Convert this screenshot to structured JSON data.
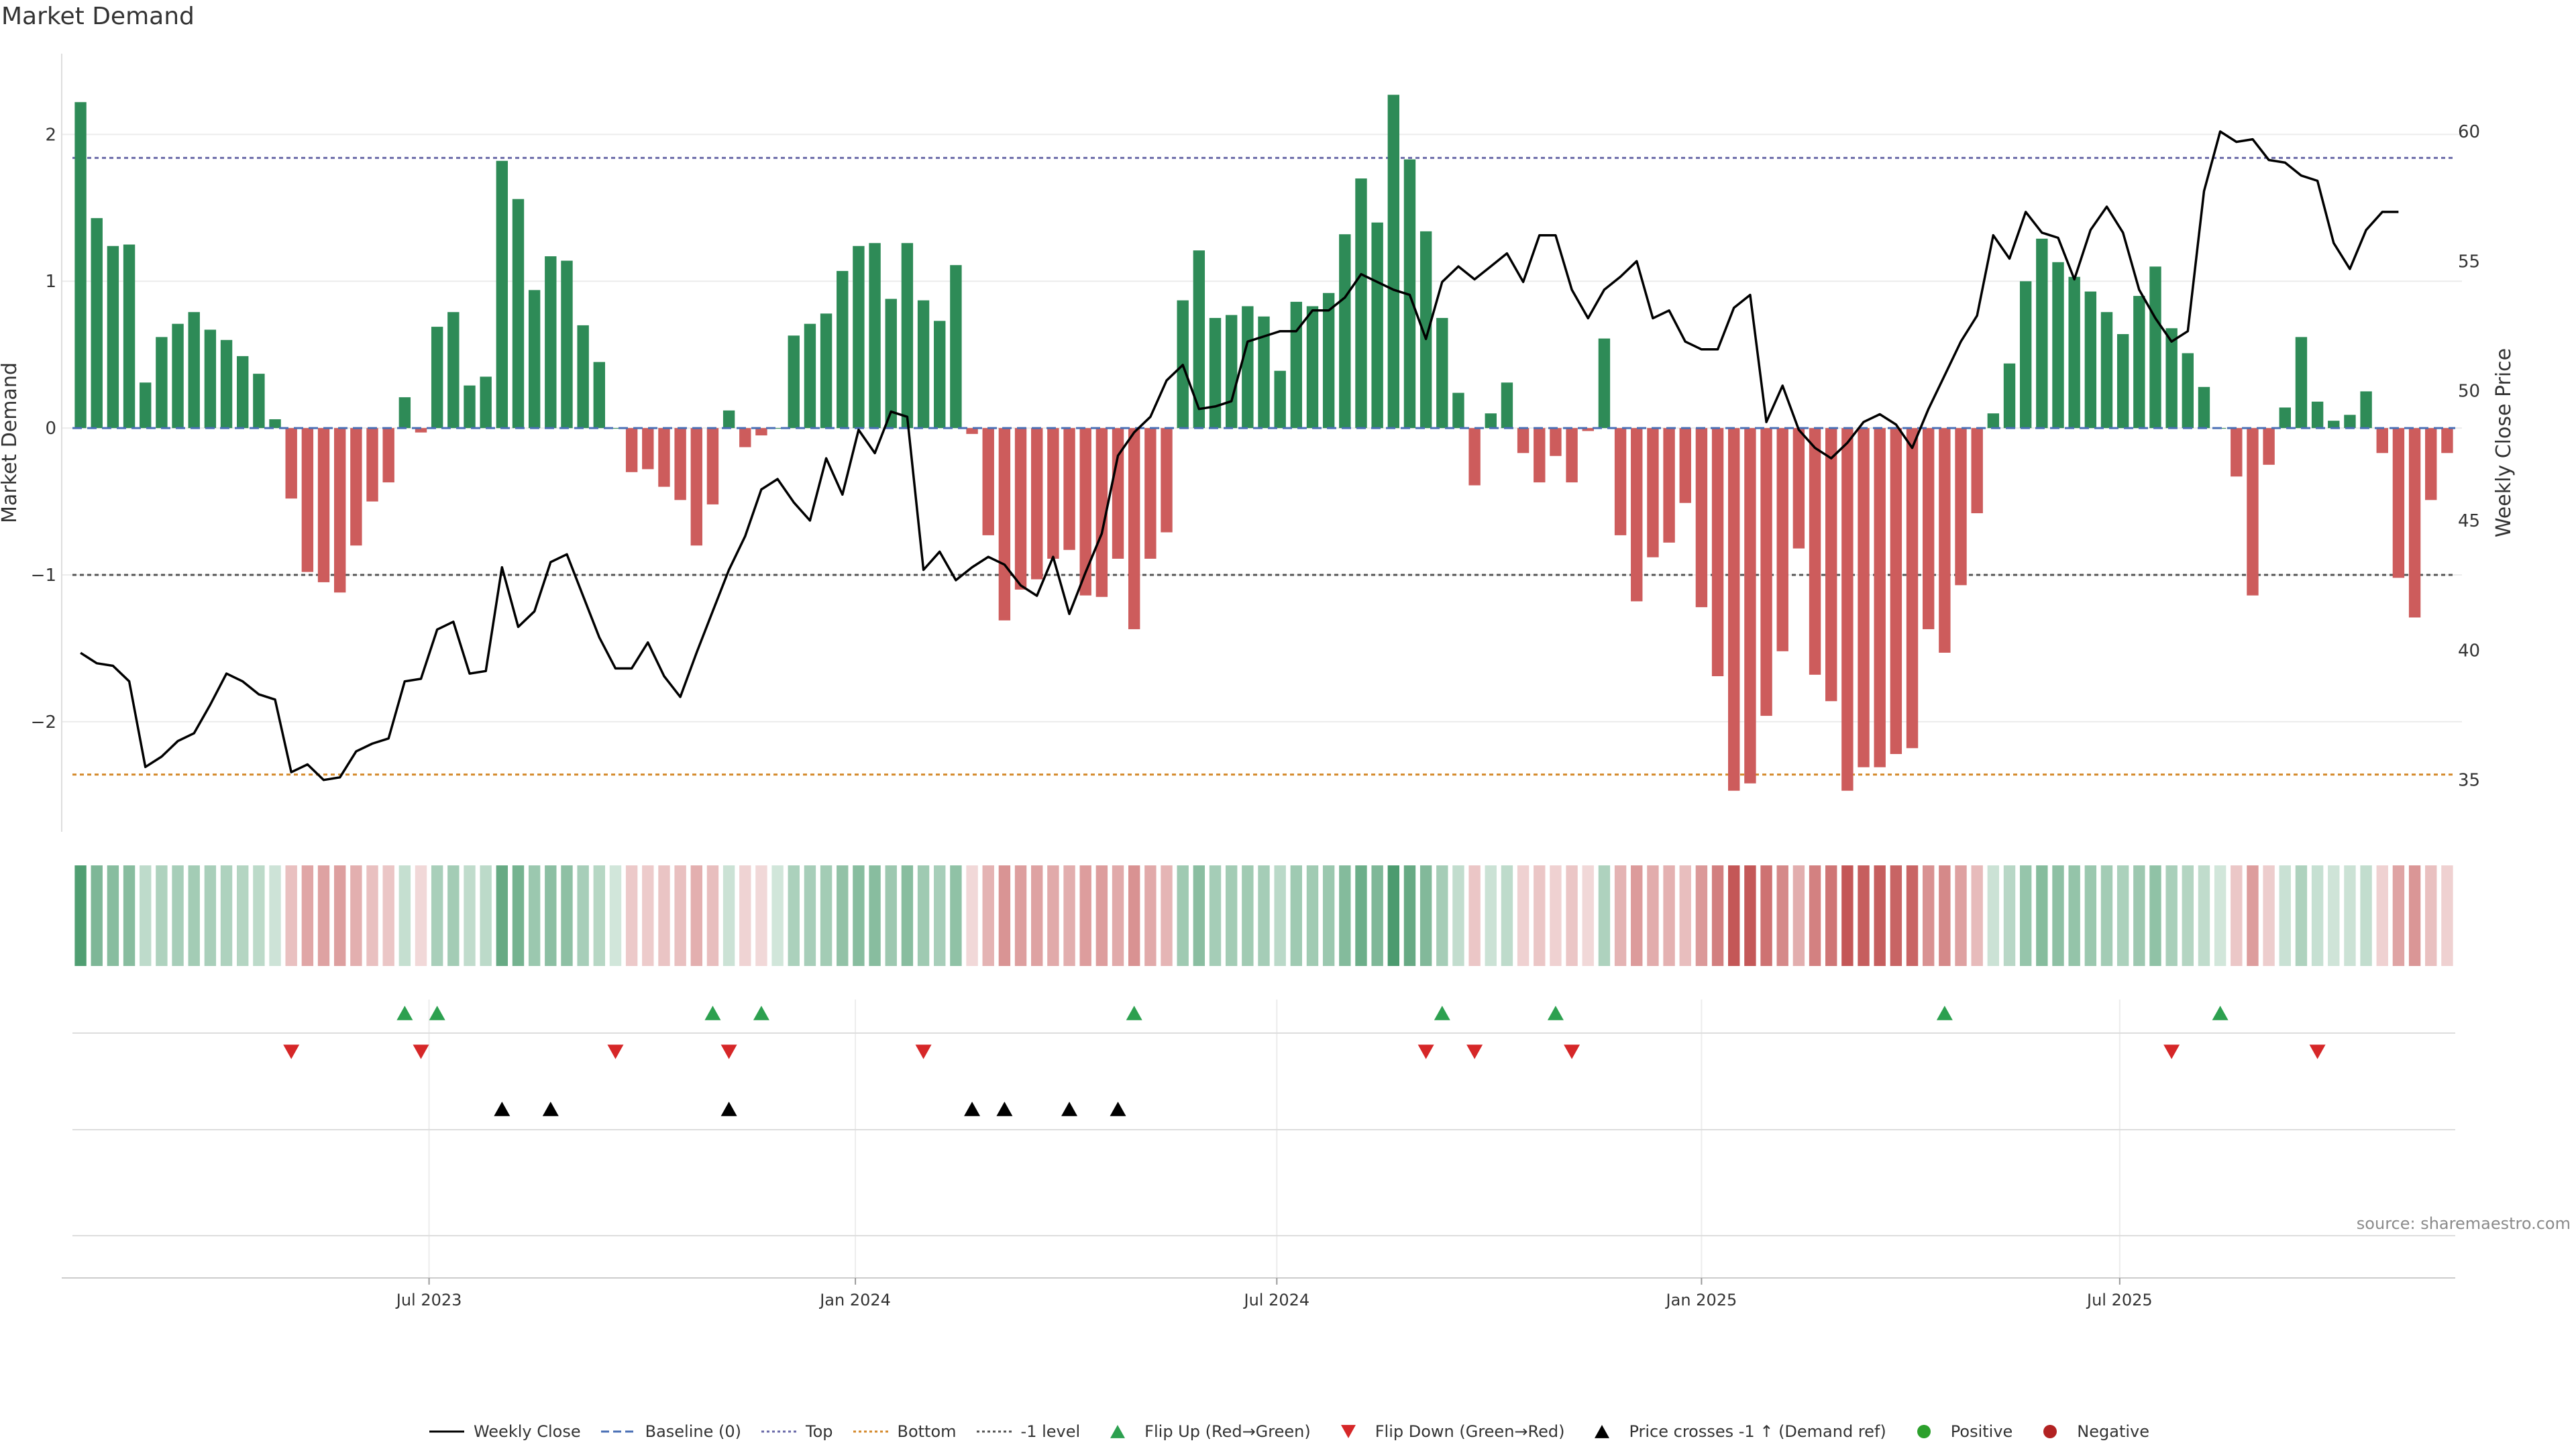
{
  "chart_data": {
    "type": "bar",
    "title": "Market Demand",
    "ylabel": "Market Demand",
    "y2label": "Weekly Close Price",
    "ylim": [
      -2.75,
      2.55
    ],
    "y2lim": [
      33.0,
      63.0
    ],
    "yticks": [
      {
        "v": 2,
        "label": "2"
      },
      {
        "v": 1,
        "label": "1"
      },
      {
        "v": 0,
        "label": "0"
      },
      {
        "v": -1,
        "label": "−1"
      },
      {
        "v": -2,
        "label": "−2"
      }
    ],
    "y2ticks": [
      {
        "v": 60,
        "label": "60"
      },
      {
        "v": 55,
        "label": "55"
      },
      {
        "v": 50,
        "label": "50"
      },
      {
        "v": 45,
        "label": "45"
      },
      {
        "v": 40,
        "label": "40"
      },
      {
        "v": 35,
        "label": "35"
      }
    ],
    "reference_lines": {
      "top": 1.84,
      "bottom": -2.36,
      "minus_one": -1.0,
      "baseline": 0
    },
    "x_start_week": 0,
    "x_ticks": [
      {
        "week": 21.5,
        "label": "Jul 2023"
      },
      {
        "week": 47.8,
        "label": "Jan 2024"
      },
      {
        "week": 73.8,
        "label": "Jul 2024"
      },
      {
        "week": 100.0,
        "label": "Jan 2025"
      },
      {
        "week": 125.8,
        "label": "Jul 2025"
      }
    ],
    "demand": [
      2.22,
      1.43,
      1.24,
      1.25,
      0.31,
      0.62,
      0.71,
      0.79,
      0.67,
      0.6,
      0.49,
      0.37,
      0.06,
      -0.48,
      -0.98,
      -1.05,
      -1.12,
      -0.8,
      -0.5,
      -0.37,
      0.21,
      -0.03,
      0.69,
      0.79,
      0.29,
      0.35,
      1.82,
      1.56,
      0.94,
      1.17,
      1.14,
      0.7,
      0.45,
      0.0,
      -0.3,
      -0.28,
      -0.4,
      -0.49,
      -0.8,
      -0.52,
      0.12,
      -0.13,
      -0.05,
      0.0,
      0.63,
      0.71,
      0.78,
      1.07,
      1.24,
      1.26,
      0.88,
      1.26,
      0.87,
      0.73,
      1.11,
      -0.04,
      -0.73,
      -1.31,
      -1.1,
      -1.03,
      -0.89,
      -0.83,
      -1.14,
      -1.15,
      -0.89,
      -1.37,
      -0.89,
      -0.71,
      0.87,
      1.21,
      0.75,
      0.77,
      0.83,
      0.76,
      0.39,
      0.86,
      0.83,
      0.92,
      1.32,
      1.7,
      1.4,
      2.27,
      1.83,
      1.34,
      0.75,
      0.24,
      -0.39,
      0.1,
      0.31,
      -0.17,
      -0.37,
      -0.19,
      -0.37,
      -0.02,
      0.61,
      -0.73,
      -1.18,
      -0.88,
      -0.78,
      -0.51,
      -1.22,
      -1.69,
      -2.47,
      -2.42,
      -1.96,
      -1.52,
      -0.82,
      -1.68,
      -1.86,
      -2.47,
      -2.31,
      -2.31,
      -2.22,
      -2.18,
      -1.37,
      -1.53,
      -1.07,
      -0.58,
      0.1,
      0.44,
      1.0,
      1.29,
      1.13,
      1.03,
      0.93,
      0.79,
      0.64,
      0.9,
      1.1,
      0.68,
      0.51,
      0.28,
      0.0,
      -0.33,
      -1.14,
      -0.25,
      0.14,
      0.62,
      0.18,
      0.05,
      0.09,
      0.25,
      -0.17,
      -1.02,
      -1.29,
      -0.49,
      -0.17
    ],
    "close": [
      39.9,
      39.5,
      39.4,
      38.8,
      35.5,
      35.9,
      36.5,
      36.8,
      37.9,
      39.1,
      38.8,
      38.3,
      38.1,
      35.3,
      35.6,
      35.0,
      35.1,
      36.1,
      36.4,
      36.6,
      38.8,
      38.9,
      40.8,
      41.1,
      39.1,
      39.2,
      43.2,
      40.9,
      41.5,
      43.4,
      43.7,
      42.1,
      40.5,
      39.3,
      39.3,
      40.3,
      39.0,
      38.2,
      39.9,
      41.5,
      43.1,
      44.4,
      46.2,
      46.6,
      45.7,
      45.0,
      47.4,
      46.0,
      48.5,
      47.6,
      49.2,
      49.0,
      43.1,
      43.8,
      42.7,
      43.2,
      43.6,
      43.3,
      42.5,
      42.1,
      43.6,
      41.4,
      43.0,
      44.5,
      47.5,
      48.4,
      49.0,
      50.4,
      51.0,
      49.3,
      49.4,
      49.6,
      51.9,
      52.1,
      52.3,
      52.3,
      53.1,
      53.1,
      53.6,
      54.5,
      54.2,
      53.9,
      53.7,
      52.0,
      54.2,
      54.8,
      54.3,
      54.8,
      55.3,
      54.2,
      56.0,
      56.0,
      53.9,
      52.8,
      53.9,
      54.4,
      55.0,
      52.8,
      53.1,
      51.9,
      51.6,
      51.6,
      53.2,
      53.7,
      48.8,
      50.2,
      48.5,
      47.8,
      47.4,
      48.0,
      48.8,
      49.1,
      48.7,
      47.8,
      49.3,
      50.6,
      51.9,
      52.9,
      56.0,
      55.1,
      56.9,
      56.1,
      55.9,
      54.3,
      56.2,
      57.1,
      56.1,
      53.9,
      52.8,
      51.9,
      52.3,
      57.7,
      60.0,
      59.6,
      59.7,
      58.9,
      58.8,
      58.3,
      58.1,
      55.7,
      54.7,
      56.2,
      56.9,
      56.9
    ],
    "flip_up_weeks": [
      20,
      22,
      39,
      42,
      65,
      84,
      91,
      115,
      132
    ],
    "flip_down_weeks": [
      13,
      21,
      33,
      40,
      52,
      83,
      86,
      92,
      129,
      138
    ],
    "price_cross_weeks": [
      26,
      29,
      40,
      55,
      57,
      61,
      64
    ],
    "legend": [
      {
        "label": "Weekly Close",
        "symbol": "line-solid",
        "color": "#000000"
      },
      {
        "label": "Baseline (0)",
        "symbol": "line-dashed",
        "color": "#4a6fb5"
      },
      {
        "label": "Top",
        "symbol": "line-dotted",
        "color": "#6a6aa8"
      },
      {
        "label": "Bottom",
        "symbol": "line-dotted",
        "color": "#d48a2c"
      },
      {
        "label": "-1 level",
        "symbol": "line-dotted",
        "color": "#555555"
      },
      {
        "label": "Flip Up (Red→Green)",
        "symbol": "tri-up",
        "color": "#2ca04f"
      },
      {
        "label": "Flip Down (Green→Red)",
        "symbol": "tri-down",
        "color": "#d62728"
      },
      {
        "label": "Price crosses -1 ↑ (Demand ref)",
        "symbol": "tri-up",
        "color": "#000000"
      },
      {
        "label": "Positive",
        "symbol": "dot",
        "color": "#2ca02c"
      },
      {
        "label": "Negative",
        "symbol": "dot",
        "color": "#b22222"
      }
    ],
    "source": "source: sharemaestro.com"
  },
  "colors": {
    "positive": "#2e8b57",
    "negative": "#cd5c5c",
    "grid": "#ececec",
    "flip_up": "#2ca04f",
    "flip_down": "#d62728",
    "cross": "#000000"
  }
}
